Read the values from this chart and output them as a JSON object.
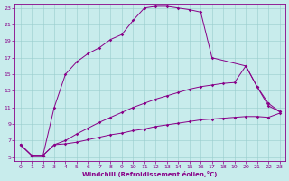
{
  "xlabel": "Windchill (Refroidissement éolien,°C)",
  "bg_color": "#c8ecec",
  "line_color": "#880088",
  "grid_color": "#99cccc",
  "xlim": [
    -0.5,
    23.5
  ],
  "ylim": [
    4.5,
    23.5
  ],
  "xticks": [
    0,
    1,
    2,
    3,
    4,
    5,
    6,
    7,
    8,
    9,
    10,
    11,
    12,
    13,
    14,
    15,
    16,
    17,
    18,
    19,
    20,
    21,
    22,
    23
  ],
  "yticks": [
    5,
    7,
    9,
    11,
    13,
    15,
    17,
    19,
    21,
    23
  ],
  "line_upper_x": [
    0,
    1,
    2,
    3,
    4,
    5,
    6,
    7,
    8,
    9,
    10,
    11,
    12,
    13,
    14,
    15,
    16,
    17,
    20,
    21,
    22,
    23
  ],
  "line_upper_y": [
    6.5,
    5.2,
    5.2,
    11.0,
    15.0,
    16.5,
    17.5,
    18.2,
    19.2,
    19.8,
    21.5,
    23.0,
    23.2,
    23.2,
    23.0,
    22.8,
    22.5,
    17.0,
    16.0,
    13.5,
    11.2,
    10.5
  ],
  "line_mid_x": [
    0,
    1,
    2,
    3,
    4,
    5,
    6,
    7,
    8,
    9,
    10,
    11,
    12,
    13,
    14,
    15,
    16,
    17,
    18,
    19,
    20,
    21,
    22,
    23
  ],
  "line_mid_y": [
    6.5,
    5.2,
    5.2,
    6.5,
    7.0,
    7.8,
    8.5,
    9.2,
    9.8,
    10.4,
    11.0,
    11.5,
    12.0,
    12.4,
    12.8,
    13.2,
    13.5,
    13.7,
    13.9,
    14.0,
    16.0,
    13.5,
    11.5,
    10.5
  ],
  "line_low_x": [
    0,
    1,
    2,
    3,
    4,
    5,
    6,
    7,
    8,
    9,
    10,
    11,
    12,
    13,
    14,
    15,
    16,
    17,
    18,
    19,
    20,
    21,
    22,
    23
  ],
  "line_low_y": [
    6.5,
    5.2,
    5.2,
    6.5,
    6.6,
    6.8,
    7.1,
    7.4,
    7.7,
    7.9,
    8.2,
    8.4,
    8.7,
    8.9,
    9.1,
    9.3,
    9.5,
    9.6,
    9.7,
    9.8,
    9.9,
    9.9,
    9.8,
    10.3
  ]
}
